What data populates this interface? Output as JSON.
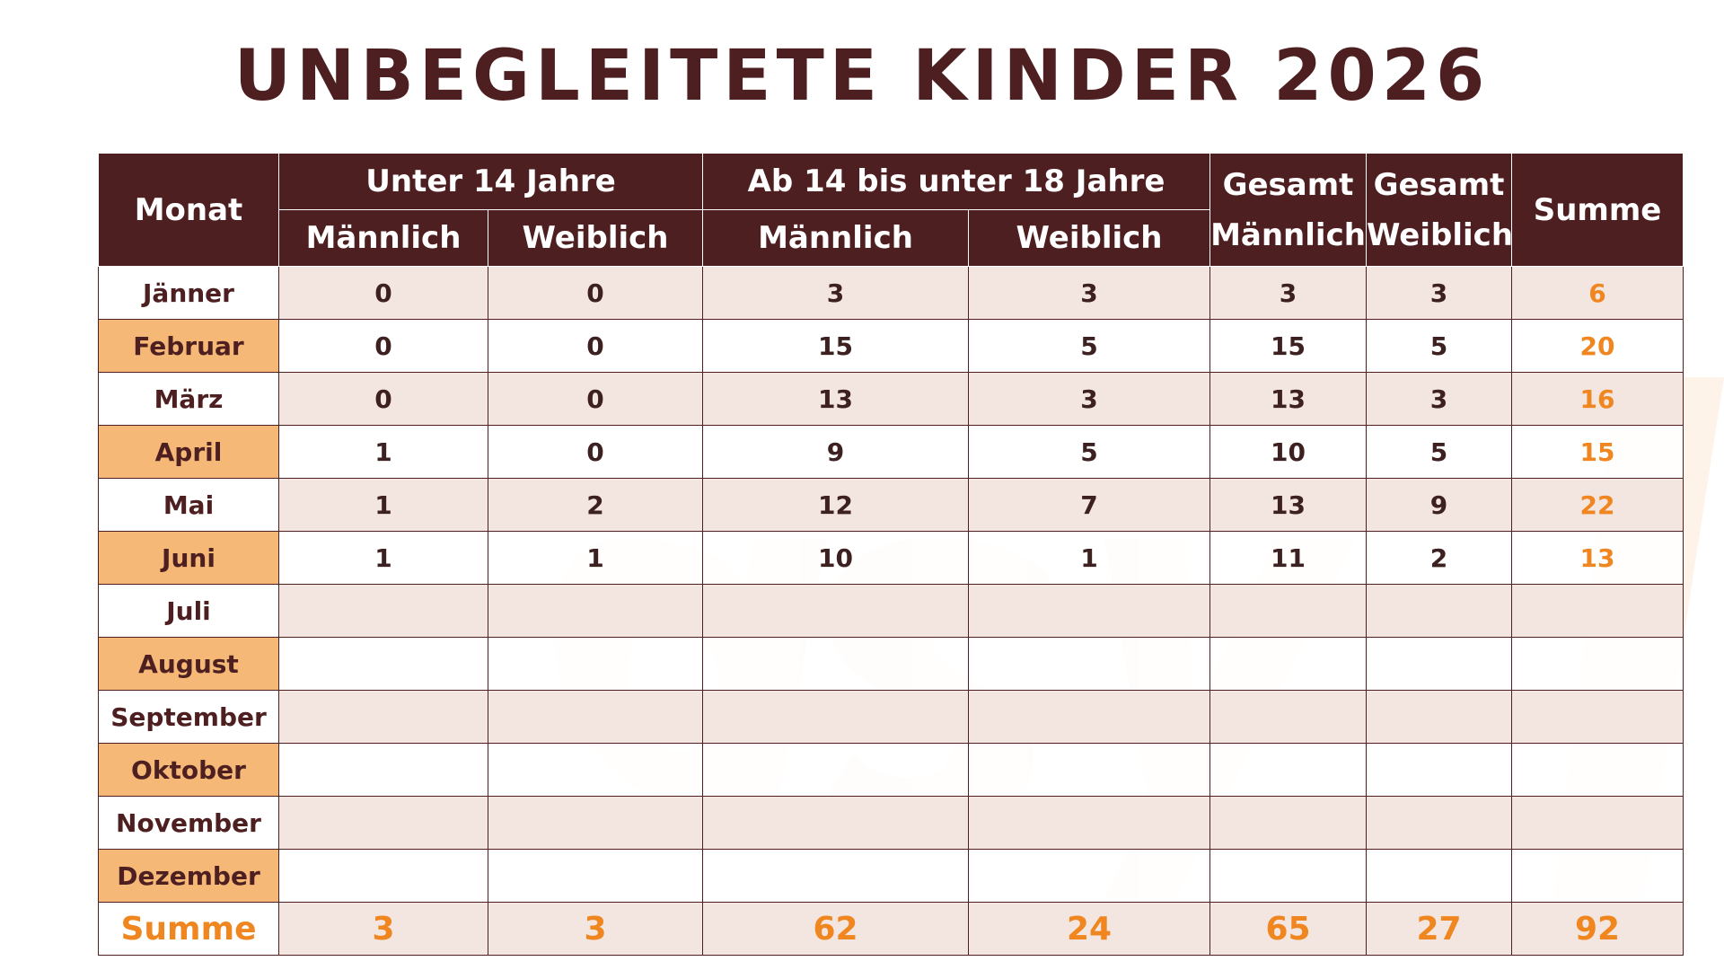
{
  "title": "UNBEGLEITETE KINDER 2026",
  "colors": {
    "header_bg": "#4e1f20",
    "accent_orange": "#f0861f",
    "month_highlight": "#f5b877",
    "row_tint": "#f2e4de"
  },
  "table": {
    "header": {
      "monat": "Monat",
      "unter14": "Unter 14 Jahre",
      "ab14": "Ab 14 bis unter 18 Jahre",
      "gesamt_m_line1": "Gesamt",
      "gesamt_m_line2": "Männlich",
      "gesamt_w_line1": "Gesamt",
      "gesamt_w_line2": "Weiblich",
      "summe": "Summe",
      "maennlich": "Männlich",
      "weiblich": "Weiblich"
    },
    "rows": [
      {
        "month": "Jänner",
        "u14_m": "0",
        "u14_w": "0",
        "ab14_m": "3",
        "ab14_w": "3",
        "ges_m": "3",
        "ges_w": "3",
        "summe": "6"
      },
      {
        "month": "Februar",
        "u14_m": "0",
        "u14_w": "0",
        "ab14_m": "15",
        "ab14_w": "5",
        "ges_m": "15",
        "ges_w": "5",
        "summe": "20"
      },
      {
        "month": "März",
        "u14_m": "0",
        "u14_w": "0",
        "ab14_m": "13",
        "ab14_w": "3",
        "ges_m": "13",
        "ges_w": "3",
        "summe": "16"
      },
      {
        "month": "April",
        "u14_m": "1",
        "u14_w": "0",
        "ab14_m": "9",
        "ab14_w": "5",
        "ges_m": "10",
        "ges_w": "5",
        "summe": "15"
      },
      {
        "month": "Mai",
        "u14_m": "1",
        "u14_w": "2",
        "ab14_m": "12",
        "ab14_w": "7",
        "ges_m": "13",
        "ges_w": "9",
        "summe": "22"
      },
      {
        "month": "Juni",
        "u14_m": "1",
        "u14_w": "1",
        "ab14_m": "10",
        "ab14_w": "1",
        "ges_m": "11",
        "ges_w": "2",
        "summe": "13"
      },
      {
        "month": "Juli",
        "u14_m": "",
        "u14_w": "",
        "ab14_m": "",
        "ab14_w": "",
        "ges_m": "",
        "ges_w": "",
        "summe": ""
      },
      {
        "month": "August",
        "u14_m": "",
        "u14_w": "",
        "ab14_m": "",
        "ab14_w": "",
        "ges_m": "",
        "ges_w": "",
        "summe": ""
      },
      {
        "month": "September",
        "u14_m": "",
        "u14_w": "",
        "ab14_m": "",
        "ab14_w": "",
        "ges_m": "",
        "ges_w": "",
        "summe": ""
      },
      {
        "month": "Oktober",
        "u14_m": "",
        "u14_w": "",
        "ab14_m": "",
        "ab14_w": "",
        "ges_m": "",
        "ges_w": "",
        "summe": ""
      },
      {
        "month": "November",
        "u14_m": "",
        "u14_w": "",
        "ab14_m": "",
        "ab14_w": "",
        "ges_m": "",
        "ges_w": "",
        "summe": ""
      },
      {
        "month": "Dezember",
        "u14_m": "",
        "u14_w": "",
        "ab14_m": "",
        "ab14_w": "",
        "ges_m": "",
        "ges_w": "",
        "summe": ""
      }
    ],
    "total": {
      "label": "Summe",
      "u14_m": "3",
      "u14_w": "3",
      "ab14_m": "62",
      "ab14_w": "24",
      "ges_m": "65",
      "ges_w": "27",
      "summe": "92"
    }
  }
}
